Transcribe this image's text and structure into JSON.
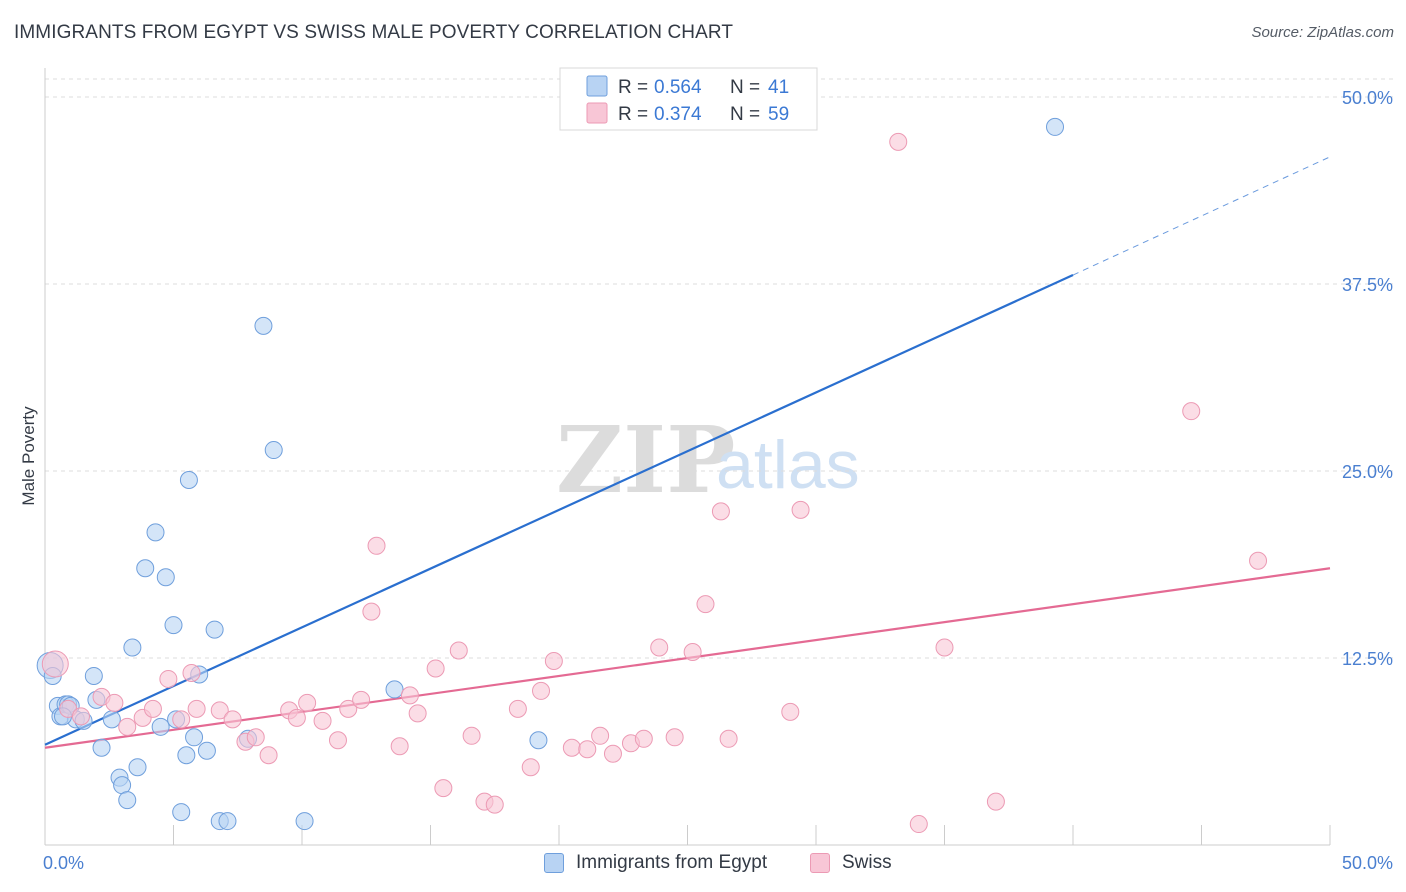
{
  "chart_data": {
    "type": "scatter",
    "title": "IMMIGRANTS FROM EGYPT VS SWISS MALE POVERTY CORRELATION CHART",
    "source": "Source: ZipAtlas.com",
    "xlabel": "",
    "ylabel": "Male Poverty",
    "xlim": [
      0,
      50
    ],
    "ylim": [
      0,
      50
    ],
    "x_tick_labels": [
      "0.0%",
      "50.0%"
    ],
    "y_ticks": [
      {
        "value": 12.5,
        "label": "12.5%"
      },
      {
        "value": 25.0,
        "label": "25.0%"
      },
      {
        "value": 37.5,
        "label": "37.5%"
      },
      {
        "value": 50.0,
        "label": "50.0%"
      }
    ],
    "grid": true,
    "watermark": "ZIPatlas",
    "series": [
      {
        "name": "Immigrants from Egypt",
        "color": "#6f9fdc",
        "fill": "#b8d3f3",
        "line_color": "#2a6fcf",
        "R": "0.564",
        "N": "41",
        "trend": {
          "x0": 0,
          "y0": 6.7,
          "x1": 40,
          "y1": 38.1,
          "dash_x1": 50,
          "dash_y1": 46.0
        },
        "points": [
          [
            0.2,
            12.0
          ],
          [
            0.3,
            11.3
          ],
          [
            0.5,
            9.3
          ],
          [
            0.6,
            8.6
          ],
          [
            0.8,
            9.4
          ],
          [
            0.9,
            9.4
          ],
          [
            1.2,
            8.4
          ],
          [
            1.5,
            8.3
          ],
          [
            1.9,
            11.3
          ],
          [
            2.0,
            9.7
          ],
          [
            2.2,
            6.5
          ],
          [
            2.6,
            8.4
          ],
          [
            2.9,
            4.5
          ],
          [
            3.0,
            4.0
          ],
          [
            3.2,
            3.0
          ],
          [
            3.4,
            13.2
          ],
          [
            3.6,
            5.2
          ],
          [
            3.9,
            18.5
          ],
          [
            4.3,
            20.9
          ],
          [
            4.5,
            7.9
          ],
          [
            4.7,
            17.9
          ],
          [
            5.0,
            14.7
          ],
          [
            5.1,
            8.4
          ],
          [
            5.3,
            2.2
          ],
          [
            5.5,
            6.0
          ],
          [
            5.6,
            24.4
          ],
          [
            5.8,
            7.2
          ],
          [
            6.0,
            11.4
          ],
          [
            6.3,
            6.3
          ],
          [
            6.6,
            14.4
          ],
          [
            6.8,
            1.6
          ],
          [
            7.1,
            1.6
          ],
          [
            7.9,
            7.1
          ],
          [
            8.5,
            34.7
          ],
          [
            8.9,
            26.4
          ],
          [
            10.1,
            1.6
          ],
          [
            13.6,
            10.4
          ],
          [
            19.2,
            7.0
          ],
          [
            39.3,
            48.0
          ],
          [
            1.0,
            9.3
          ],
          [
            0.7,
            8.6
          ]
        ]
      },
      {
        "name": "Swiss",
        "color": "#ec9ab4",
        "fill": "#f8c6d6",
        "line_color": "#e46a93",
        "R": "0.374",
        "N": "59",
        "trend": {
          "x0": 0,
          "y0": 6.5,
          "x1": 50,
          "y1": 18.5
        },
        "points": [
          [
            0.4,
            12.1
          ],
          [
            0.9,
            9.1
          ],
          [
            1.4,
            8.6
          ],
          [
            2.2,
            9.9
          ],
          [
            2.7,
            9.5
          ],
          [
            3.2,
            7.9
          ],
          [
            3.8,
            8.5
          ],
          [
            4.2,
            9.1
          ],
          [
            4.8,
            11.1
          ],
          [
            5.3,
            8.4
          ],
          [
            5.7,
            11.5
          ],
          [
            5.9,
            9.1
          ],
          [
            6.8,
            9.0
          ],
          [
            7.3,
            8.4
          ],
          [
            7.8,
            6.9
          ],
          [
            8.2,
            7.2
          ],
          [
            8.7,
            6.0
          ],
          [
            9.5,
            9.0
          ],
          [
            9.8,
            8.5
          ],
          [
            10.2,
            9.5
          ],
          [
            10.8,
            8.3
          ],
          [
            11.4,
            7.0
          ],
          [
            11.8,
            9.1
          ],
          [
            12.3,
            9.7
          ],
          [
            12.9,
            20.0
          ],
          [
            12.7,
            15.6
          ],
          [
            13.8,
            6.6
          ],
          [
            14.2,
            10.0
          ],
          [
            14.5,
            8.8
          ],
          [
            15.2,
            11.8
          ],
          [
            15.5,
            3.8
          ],
          [
            16.1,
            13.0
          ],
          [
            16.6,
            7.3
          ],
          [
            17.1,
            2.9
          ],
          [
            17.5,
            2.7
          ],
          [
            18.4,
            9.1
          ],
          [
            18.9,
            5.2
          ],
          [
            19.3,
            10.3
          ],
          [
            19.8,
            12.3
          ],
          [
            20.5,
            6.5
          ],
          [
            21.1,
            6.4
          ],
          [
            21.6,
            7.3
          ],
          [
            22.1,
            6.1
          ],
          [
            22.8,
            6.8
          ],
          [
            23.3,
            7.1
          ],
          [
            23.9,
            13.2
          ],
          [
            24.5,
            7.2
          ],
          [
            25.2,
            12.9
          ],
          [
            25.7,
            16.1
          ],
          [
            26.3,
            22.3
          ],
          [
            26.6,
            7.1
          ],
          [
            29.4,
            22.4
          ],
          [
            33.2,
            47.0
          ],
          [
            34.0,
            1.4
          ],
          [
            35.0,
            13.2
          ],
          [
            37.0,
            2.9
          ],
          [
            44.6,
            29.0
          ],
          [
            47.2,
            19.0
          ],
          [
            29.0,
            8.9
          ]
        ]
      }
    ]
  },
  "legend_top": {
    "r_label": "R =",
    "n_label": "N ="
  }
}
